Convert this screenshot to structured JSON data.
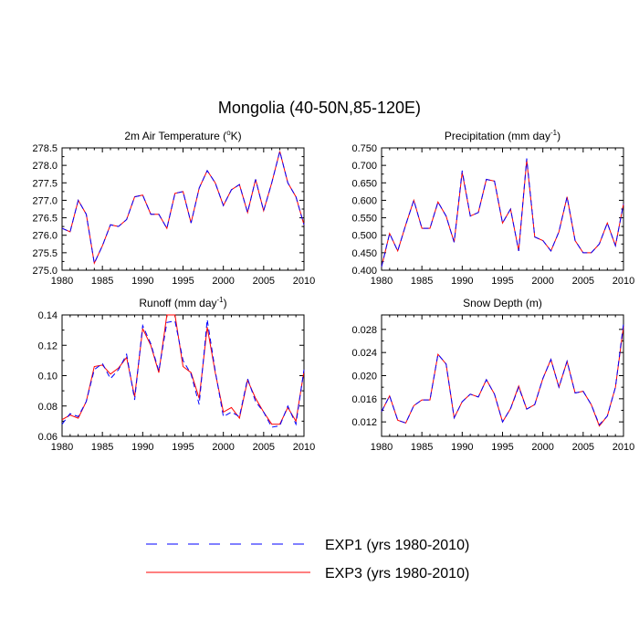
{
  "title": "Mongolia (40-50N,85-120E)",
  "colors": {
    "exp1": "#0000ff",
    "exp3": "#ff0000"
  },
  "legend": {
    "placement": "bottom-center",
    "items": [
      {
        "label": "EXP1 (yrs 1980-2010)",
        "style": "dashed",
        "color": "#0000ff"
      },
      {
        "label": "EXP3 (yrs 1980-2010)",
        "style": "solid",
        "color": "#ff0000"
      }
    ]
  },
  "chart_data": [
    {
      "type": "line",
      "title_main": "2m Air Temperature (",
      "title_sup": "o",
      "title_end": "K)",
      "x": [
        1980,
        1981,
        1982,
        1983,
        1984,
        1985,
        1986,
        1987,
        1988,
        1989,
        1990,
        1991,
        1992,
        1993,
        1994,
        1995,
        1996,
        1997,
        1998,
        1999,
        2000,
        2001,
        2002,
        2003,
        2004,
        2005,
        2006,
        2007,
        2008,
        2009,
        2010
      ],
      "xlim": [
        1980,
        2010
      ],
      "xticks": [
        1980,
        1985,
        1990,
        1995,
        2000,
        2005,
        2010
      ],
      "ylim": [
        275.0,
        278.5
      ],
      "yticks": [
        "275.0",
        "275.5",
        "276.0",
        "276.5",
        "277.0",
        "277.5",
        "278.0",
        "278.5"
      ],
      "series": [
        {
          "name": "EXP1 (yrs 1980-2010)",
          "values": [
            276.2,
            276.1,
            277.0,
            276.6,
            275.2,
            275.7,
            276.3,
            276.25,
            276.45,
            277.1,
            277.15,
            276.6,
            276.6,
            276.2,
            277.2,
            277.25,
            276.35,
            277.35,
            277.85,
            277.5,
            276.85,
            277.3,
            277.45,
            276.65,
            277.6,
            276.7,
            277.5,
            278.4,
            277.5,
            277.1,
            276.3
          ]
        },
        {
          "name": "EXP3 (yrs 1980-2010)",
          "values": [
            276.2,
            276.1,
            277.0,
            276.6,
            275.2,
            275.7,
            276.3,
            276.25,
            276.45,
            277.1,
            277.15,
            276.6,
            276.6,
            276.2,
            277.2,
            277.25,
            276.35,
            277.35,
            277.85,
            277.5,
            276.85,
            277.3,
            277.45,
            276.65,
            277.6,
            276.7,
            277.5,
            278.4,
            277.5,
            277.1,
            276.3
          ]
        }
      ]
    },
    {
      "type": "line",
      "title_main": "Precipitation (mm day",
      "title_sup": "-1",
      "title_end": ")",
      "x": [
        1980,
        1981,
        1982,
        1983,
        1984,
        1985,
        1986,
        1987,
        1988,
        1989,
        1990,
        1991,
        1992,
        1993,
        1994,
        1995,
        1996,
        1997,
        1998,
        1999,
        2000,
        2001,
        2002,
        2003,
        2004,
        2005,
        2006,
        2007,
        2008,
        2009,
        2010
      ],
      "xlim": [
        1980,
        2010
      ],
      "xticks": [
        1980,
        1985,
        1990,
        1995,
        2000,
        2005,
        2010
      ],
      "ylim": [
        0.4,
        0.75
      ],
      "yticks": [
        "0.400",
        "0.450",
        "0.500",
        "0.550",
        "0.600",
        "0.650",
        "0.700",
        "0.750"
      ],
      "series": [
        {
          "name": "EXP1 (yrs 1980-2010)",
          "values": [
            0.41,
            0.505,
            0.455,
            0.53,
            0.6,
            0.52,
            0.52,
            0.595,
            0.555,
            0.48,
            0.685,
            0.555,
            0.565,
            0.66,
            0.655,
            0.535,
            0.575,
            0.455,
            0.72,
            0.495,
            0.485,
            0.455,
            0.51,
            0.61,
            0.485,
            0.45,
            0.45,
            0.475,
            0.535,
            0.47,
            0.59
          ]
        },
        {
          "name": "EXP3 (yrs 1980-2010)",
          "values": [
            0.41,
            0.505,
            0.455,
            0.53,
            0.6,
            0.52,
            0.52,
            0.595,
            0.555,
            0.48,
            0.68,
            0.555,
            0.565,
            0.66,
            0.655,
            0.535,
            0.575,
            0.455,
            0.715,
            0.495,
            0.485,
            0.455,
            0.51,
            0.61,
            0.485,
            0.45,
            0.45,
            0.475,
            0.535,
            0.47,
            0.59
          ]
        }
      ]
    },
    {
      "type": "line",
      "title_main": "Runoff (mm day",
      "title_sup": "-1",
      "title_end": ")",
      "x": [
        1980,
        1981,
        1982,
        1983,
        1984,
        1985,
        1986,
        1987,
        1988,
        1989,
        1990,
        1991,
        1992,
        1993,
        1994,
        1995,
        1996,
        1997,
        1998,
        1999,
        2000,
        2001,
        2002,
        2003,
        2004,
        2005,
        2006,
        2007,
        2008,
        2009,
        2010
      ],
      "xlim": [
        1980,
        2010
      ],
      "xticks": [
        1980,
        1985,
        1990,
        1995,
        2000,
        2005,
        2010
      ],
      "ylim": [
        0.06,
        0.14
      ],
      "yticks": [
        "0.06",
        "0.08",
        "0.10",
        "0.12",
        "0.14"
      ],
      "series": [
        {
          "name": "EXP1 (yrs 1980-2010)",
          "values": [
            0.068,
            0.075,
            0.073,
            0.083,
            0.104,
            0.108,
            0.098,
            0.104,
            0.114,
            0.084,
            0.133,
            0.121,
            0.103,
            0.135,
            0.136,
            0.11,
            0.101,
            0.081,
            0.137,
            0.103,
            0.073,
            0.076,
            0.073,
            0.098,
            0.083,
            0.076,
            0.066,
            0.067,
            0.08,
            0.068,
            0.104
          ]
        },
        {
          "name": "EXP3 (yrs 1980-2010)",
          "values": [
            0.071,
            0.074,
            0.072,
            0.083,
            0.106,
            0.107,
            0.101,
            0.105,
            0.112,
            0.086,
            0.131,
            0.12,
            0.102,
            0.14,
            0.14,
            0.106,
            0.102,
            0.085,
            0.132,
            0.102,
            0.076,
            0.079,
            0.072,
            0.097,
            0.085,
            0.076,
            0.068,
            0.068,
            0.079,
            0.07,
            0.103
          ]
        }
      ]
    },
    {
      "type": "line",
      "title_main": "Snow Depth (m)",
      "title_sup": "",
      "title_end": "",
      "x": [
        1980,
        1981,
        1982,
        1983,
        1984,
        1985,
        1986,
        1987,
        1988,
        1989,
        1990,
        1991,
        1992,
        1993,
        1994,
        1995,
        1996,
        1997,
        1998,
        1999,
        2000,
        2001,
        2002,
        2003,
        2004,
        2005,
        2006,
        2007,
        2008,
        2009,
        2010
      ],
      "xlim": [
        1980,
        2010
      ],
      "xticks": [
        1980,
        1985,
        1990,
        1995,
        2000,
        2005,
        2010
      ],
      "ylim": [
        0.0095,
        0.0305
      ],
      "yticks": [
        "0.012",
        "0.016",
        "0.020",
        "0.024",
        "0.028"
      ],
      "ytick_values": [
        0.012,
        0.016,
        0.02,
        0.024,
        0.028
      ],
      "series": [
        {
          "name": "EXP1 (yrs 1980-2010)",
          "values": [
            0.0138,
            0.0165,
            0.0123,
            0.0118,
            0.0148,
            0.0158,
            0.0158,
            0.0237,
            0.022,
            0.0127,
            0.0155,
            0.0168,
            0.0163,
            0.0193,
            0.0168,
            0.012,
            0.0143,
            0.018,
            0.0142,
            0.015,
            0.0195,
            0.0228,
            0.018,
            0.0225,
            0.017,
            0.0173,
            0.015,
            0.0115,
            0.013,
            0.018,
            0.029
          ]
        },
        {
          "name": "EXP3 (yrs 1980-2010)",
          "values": [
            0.0138,
            0.0165,
            0.0123,
            0.0118,
            0.0148,
            0.0158,
            0.0158,
            0.0237,
            0.022,
            0.0127,
            0.0155,
            0.0168,
            0.0163,
            0.0193,
            0.0168,
            0.012,
            0.0143,
            0.0182,
            0.0142,
            0.015,
            0.0195,
            0.0228,
            0.018,
            0.0225,
            0.017,
            0.0173,
            0.015,
            0.0113,
            0.013,
            0.018,
            0.0285
          ]
        }
      ]
    }
  ]
}
